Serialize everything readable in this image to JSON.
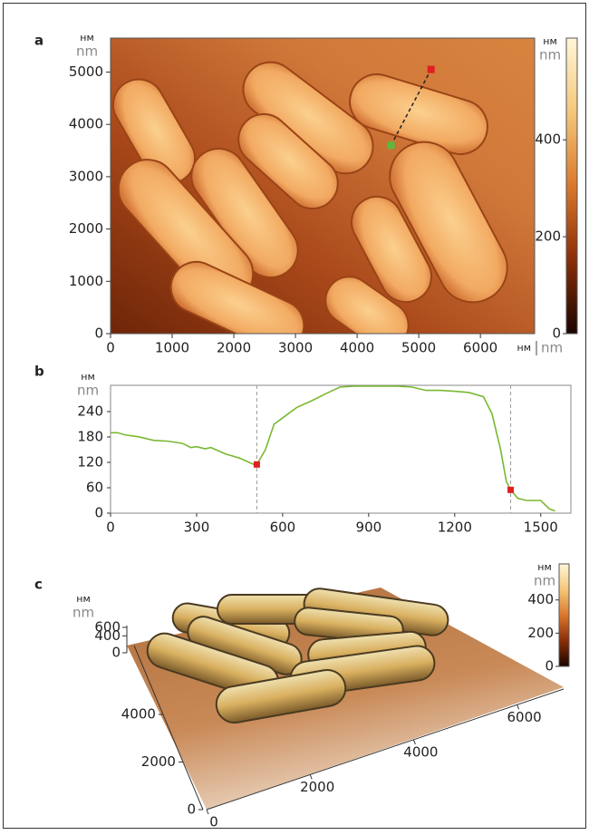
{
  "chart_data": [
    {
      "type": "heatmap",
      "panel_label": "a",
      "y_unit": [
        "нм",
        "nm"
      ],
      "x_unit": [
        "нм",
        "nm"
      ],
      "xlim": [
        0,
        6880
      ],
      "ylim": [
        0,
        5650
      ],
      "xticks": [
        0,
        1000,
        2000,
        3000,
        4000,
        5000,
        6000
      ],
      "yticks": [
        0,
        1000,
        2000,
        3000,
        4000,
        5000
      ],
      "colorbar": {
        "unit": [
          "нм",
          "nm"
        ],
        "lim": [
          0,
          610
        ],
        "ticks": [
          0,
          200,
          400
        ],
        "colors": [
          "#1a0500",
          "#8a2e08",
          "#d9782c",
          "#f4c77a",
          "#fff6d8"
        ]
      },
      "profile": {
        "x": [
          4550,
          5200
        ],
        "y": [
          3600,
          5050
        ],
        "start_color": "#5cb83c",
        "end_color": "#e02020"
      }
    },
    {
      "type": "line",
      "panel_label": "b",
      "y_unit": [
        "нм",
        "nm"
      ],
      "xlim": [
        0,
        1605
      ],
      "ylim": [
        0,
        302
      ],
      "xticks": [
        0,
        300,
        600,
        900,
        1200,
        1500
      ],
      "yticks": [
        0,
        60,
        120,
        180,
        240
      ],
      "color": "#7ab832",
      "x": [
        0,
        25,
        50,
        100,
        150,
        200,
        250,
        280,
        300,
        330,
        350,
        400,
        450,
        500,
        510,
        540,
        570,
        600,
        650,
        700,
        750,
        800,
        850,
        900,
        950,
        1000,
        1050,
        1100,
        1150,
        1200,
        1250,
        1300,
        1330,
        1360,
        1380,
        1395,
        1420,
        1450,
        1500,
        1530,
        1550
      ],
      "values": [
        190,
        190,
        185,
        180,
        172,
        170,
        165,
        155,
        157,
        152,
        155,
        140,
        130,
        115,
        115,
        150,
        210,
        225,
        250,
        265,
        282,
        298,
        300,
        300,
        300,
        300,
        298,
        290,
        290,
        288,
        285,
        275,
        235,
        150,
        75,
        55,
        35,
        30,
        30,
        10,
        5
      ],
      "markers": {
        "x": [
          510,
          1395
        ],
        "values": [
          115,
          55
        ],
        "color": "#e02020"
      }
    },
    {
      "type": "surface",
      "panel_label": "c",
      "z_unit": [
        "нм",
        "nm"
      ],
      "xlim": [
        0,
        6900
      ],
      "ylim": [
        0,
        6900
      ],
      "zlim": [
        0,
        600
      ],
      "xticks": [
        0,
        2000,
        4000,
        6000
      ],
      "yticks": [
        0,
        2000,
        4000
      ],
      "zticks": [
        0,
        400,
        600
      ],
      "colorbar": {
        "unit": [
          "нм",
          "nm"
        ],
        "lim": [
          0,
          617
        ],
        "ticks": [
          0,
          200,
          400
        ],
        "colors": [
          "#1a0500",
          "#8a2e08",
          "#d9782c",
          "#f4c77a",
          "#fff6d8"
        ]
      }
    }
  ]
}
